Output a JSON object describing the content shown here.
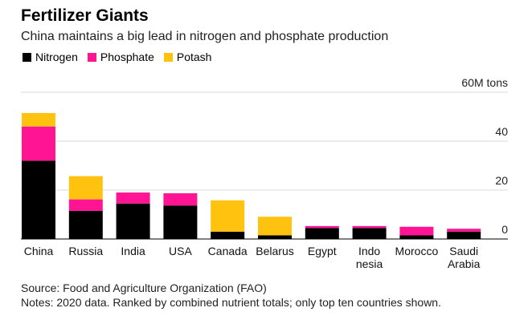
{
  "header": {
    "title": "Fertilizer Giants",
    "subtitle": "China maintains a big lead in nitrogen and phosphate production"
  },
  "legend": [
    {
      "name": "Nitrogen",
      "color": "#000000"
    },
    {
      "name": "Phosphate",
      "color": "#ff1493"
    },
    {
      "name": "Potash",
      "color": "#ffc20e"
    }
  ],
  "footer": {
    "source": "Source: Food and Agriculture Organization (FAO)",
    "notes": "Notes: 2020 data. Ranked by combined nutrient totals; only top ten countries shown."
  },
  "chart_data": {
    "type": "bar",
    "stacked": true,
    "categories": [
      [
        "China"
      ],
      [
        "Russia"
      ],
      [
        "India"
      ],
      [
        "USA"
      ],
      [
        "Canada"
      ],
      [
        "Belarus"
      ],
      [
        "Egypt"
      ],
      [
        "Indo",
        "nesia"
      ],
      [
        "Morocco"
      ],
      [
        "Saudi",
        "Arabia"
      ]
    ],
    "series": [
      {
        "name": "Nitrogen",
        "color": "#000000",
        "values": [
          32.0,
          11.5,
          14.5,
          13.7,
          3.0,
          1.5,
          4.5,
          4.5,
          1.5,
          3.0
        ]
      },
      {
        "name": "Phosphate",
        "color": "#ff1493",
        "values": [
          14.0,
          4.7,
          4.5,
          5.0,
          0.0,
          0.0,
          0.8,
          0.8,
          3.5,
          1.2
        ]
      },
      {
        "name": "Potash",
        "color": "#ffc20e",
        "values": [
          5.5,
          9.5,
          0.0,
          0.0,
          12.8,
          7.6,
          0.0,
          0.0,
          0.0,
          0.0
        ]
      }
    ],
    "ylim": [
      0,
      60
    ],
    "yticks": [
      "0",
      "20",
      "40",
      "60M tons"
    ],
    "ytick_values": [
      0,
      20,
      40,
      60
    ],
    "grid": true
  }
}
